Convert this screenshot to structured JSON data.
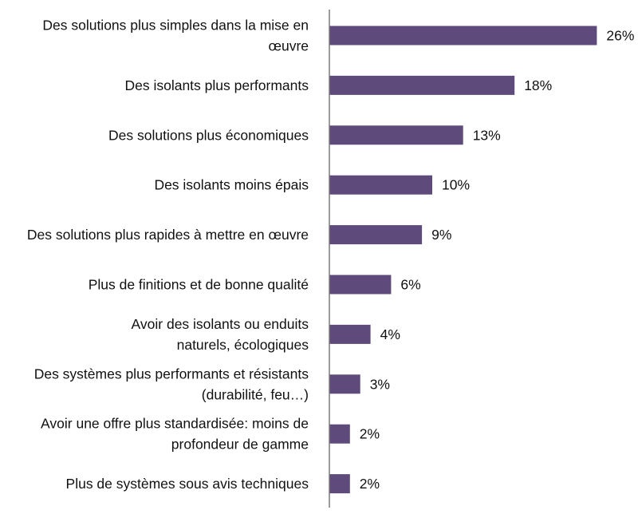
{
  "chart_data": {
    "type": "bar",
    "orientation": "horizontal",
    "categories": [
      [
        "Des solutions plus simples dans la mise en",
        "œuvre"
      ],
      [
        "Des isolants plus performants"
      ],
      [
        "Des solutions plus économiques"
      ],
      [
        "Des isolants moins épais"
      ],
      [
        "Des solutions plus rapides à mettre en œuvre"
      ],
      [
        "Plus de finitions et de bonne qualité"
      ],
      [
        "Avoir des isolants ou enduits",
        "naturels, écologiques"
      ],
      [
        "Des systèmes plus performants et résistants",
        "(durabilité, feu…)"
      ],
      [
        "Avoir une offre plus standardisée: moins de",
        "profondeur de gamme"
      ],
      [
        "Plus de systèmes sous avis techniques"
      ]
    ],
    "values": [
      26,
      18,
      13,
      10,
      9,
      6,
      4,
      3,
      2,
      2
    ],
    "value_labels": [
      "26%",
      "18%",
      "13%",
      "10%",
      "9%",
      "6%",
      "4%",
      "3%",
      "2%",
      "2%"
    ],
    "unit": "%",
    "xlim": [
      0,
      26
    ],
    "grid": false,
    "bar_color": "#5f4a7c",
    "axis_color": "#7a7a7a"
  }
}
